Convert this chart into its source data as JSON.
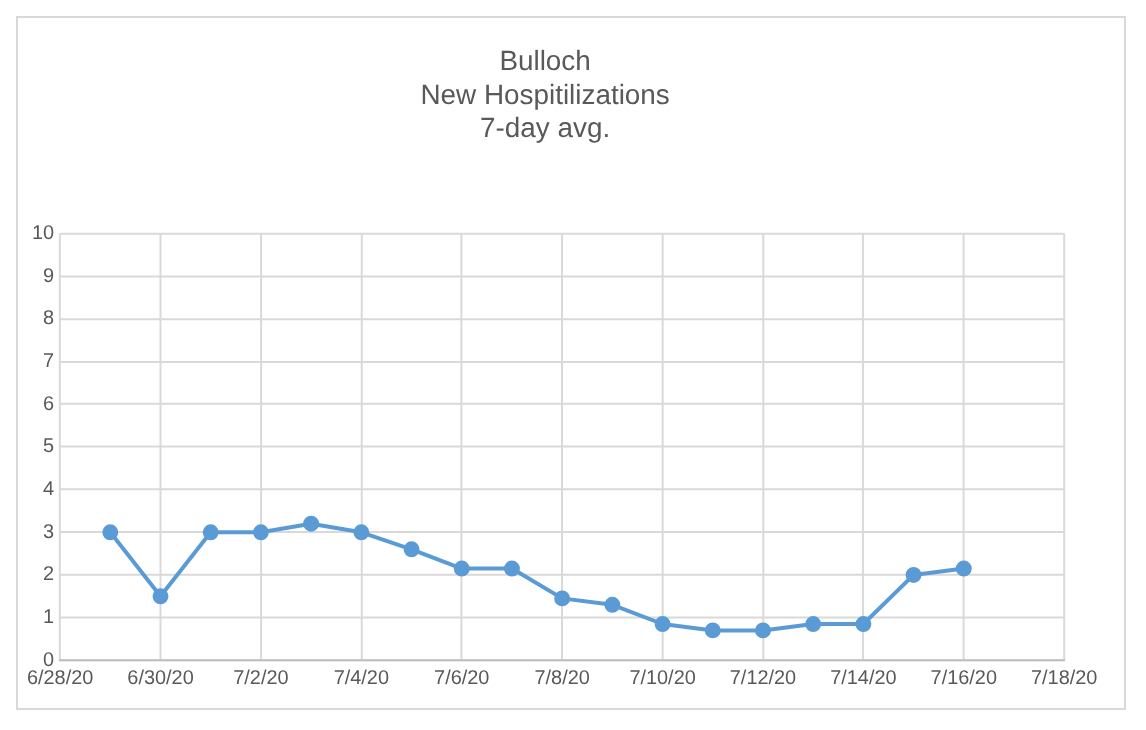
{
  "chart_data": {
    "type": "line",
    "title": "Bulloch\nNew Hospitilizations\n7-day avg.",
    "x": [
      "--06-29",
      "--06-30",
      "--07-01",
      "--07-02",
      "--07-03",
      "--07-04",
      "--07-05",
      "--07-06",
      "--07-07",
      "--07-08",
      "--07-09",
      "--07-10",
      "--07-11",
      "--07-12",
      "--07-13",
      "--07-14",
      "--07-15",
      "--07-16"
    ],
    "series": [
      {
        "color": "#5b9bd5",
        "values": [
          3.0,
          1.5,
          3.0,
          3.0,
          3.2,
          3.0,
          2.6,
          2.15,
          2.15,
          1.45,
          1.3,
          0.85,
          0.7,
          0.7,
          0.85,
          0.85,
          2.0,
          2.15
        ]
      }
    ],
    "xlim": [
      "--06-28",
      "--07-18"
    ],
    "xticks": [
      {
        "value": "--06-28",
        "label": "6/28/20"
      },
      {
        "value": "--06-30",
        "label": "6/30/20"
      },
      {
        "value": "--07-02",
        "label": "7/2/20"
      },
      {
        "value": "--07-04",
        "label": "7/4/20"
      },
      {
        "value": "--07-06",
        "label": "7/6/20"
      },
      {
        "value": "--07-08",
        "label": "7/8/20"
      },
      {
        "value": "--07-10",
        "label": "7/10/20"
      },
      {
        "value": "--07-12",
        "label": "7/12/20"
      },
      {
        "value": "--07-14",
        "label": "7/14/20"
      },
      {
        "value": "--07-16",
        "label": "7/16/20"
      },
      {
        "value": "--07-18",
        "label": "7/18/20"
      }
    ],
    "ylim": [
      0,
      10
    ],
    "yticks": [
      0,
      1,
      2,
      3,
      4,
      5,
      6,
      7,
      8,
      9,
      10
    ],
    "grid": true,
    "legend": false,
    "marker": "circle",
    "line_style": "solid"
  }
}
